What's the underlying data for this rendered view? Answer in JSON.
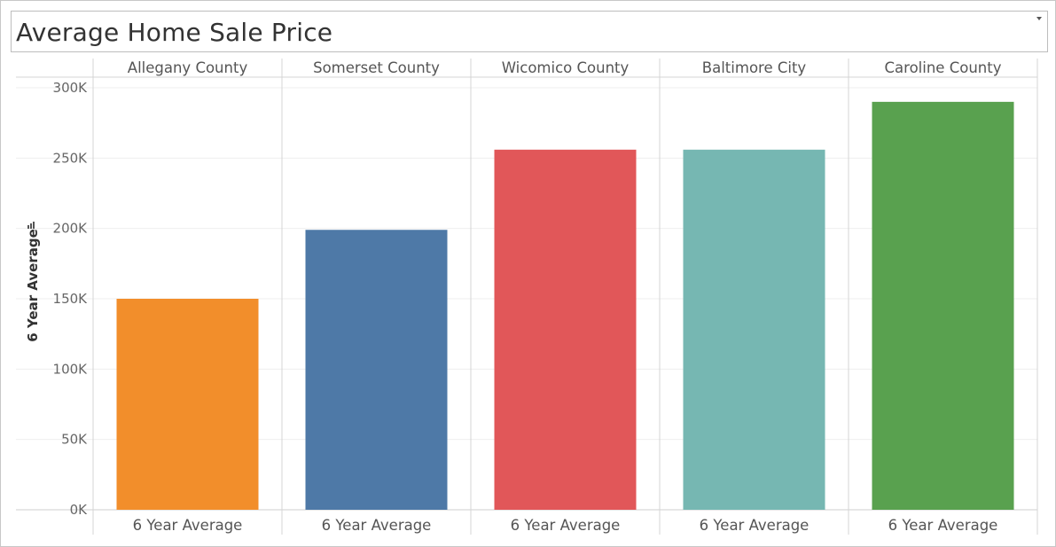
{
  "title": "Average Home Sale Price",
  "dropdown_icon": "chevron-down-icon",
  "chart_data": {
    "type": "bar",
    "title": "Average Home Sale Price",
    "ylabel": "6 Year Average",
    "xlabel": "",
    "ylim": [
      0,
      300000
    ],
    "yticks": [
      0,
      50000,
      100000,
      150000,
      200000,
      250000,
      300000
    ],
    "ytick_labels": [
      "0K",
      "50K",
      "100K",
      "150K",
      "200K",
      "250K",
      "300K"
    ],
    "categories": [
      "Allegany County",
      "Somerset County",
      "Wicomico County",
      "Baltimore City",
      "Caroline County"
    ],
    "bar_label": "6 Year Average",
    "values": [
      150000,
      199000,
      256000,
      256000,
      290000
    ],
    "colors": [
      "#f28e2b",
      "#4e79a7",
      "#e15759",
      "#76b7b2",
      "#59a14f"
    ],
    "grid": true,
    "sort_icon": "sort-icon"
  }
}
